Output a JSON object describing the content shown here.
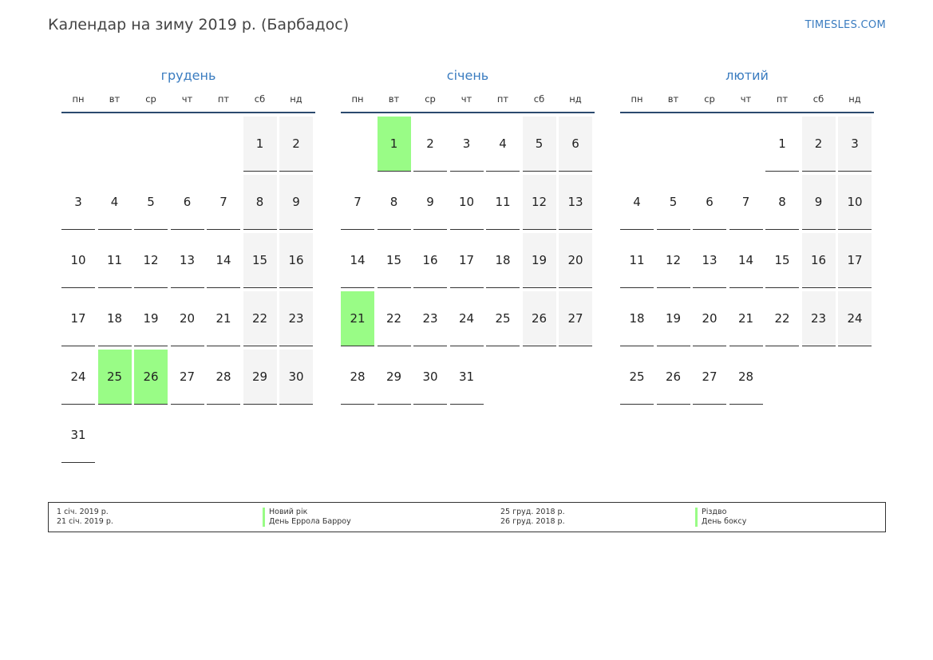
{
  "page": {
    "title": "Календар на зиму 2019 р. (Барбадос)",
    "site": "TIMESLES.COM",
    "colors": {
      "accent": "#3a7cc0",
      "holiday": "#99fc86",
      "weekend": "#f4f4f4",
      "rule": "#2b4a6e"
    }
  },
  "weekdays": [
    "пн",
    "вт",
    "ср",
    "чт",
    "пт",
    "сб",
    "нд"
  ],
  "months": [
    {
      "name": "грудень",
      "offset": 5,
      "days": 31,
      "holidays": [
        25,
        26
      ]
    },
    {
      "name": "січень",
      "offset": 1,
      "days": 31,
      "holidays": [
        1,
        21
      ]
    },
    {
      "name": "лютий",
      "offset": 4,
      "days": 28,
      "holidays": []
    }
  ],
  "legend": {
    "left": [
      {
        "date": "1 січ. 2019 р.",
        "name": "Новий рік"
      },
      {
        "date": "21 січ. 2019 р.",
        "name": "День Еррола Барроу"
      }
    ],
    "right": [
      {
        "date": "25 груд. 2018 р.",
        "name": "Різдво"
      },
      {
        "date": "26 груд. 2018 р.",
        "name": "День боксу"
      }
    ]
  }
}
